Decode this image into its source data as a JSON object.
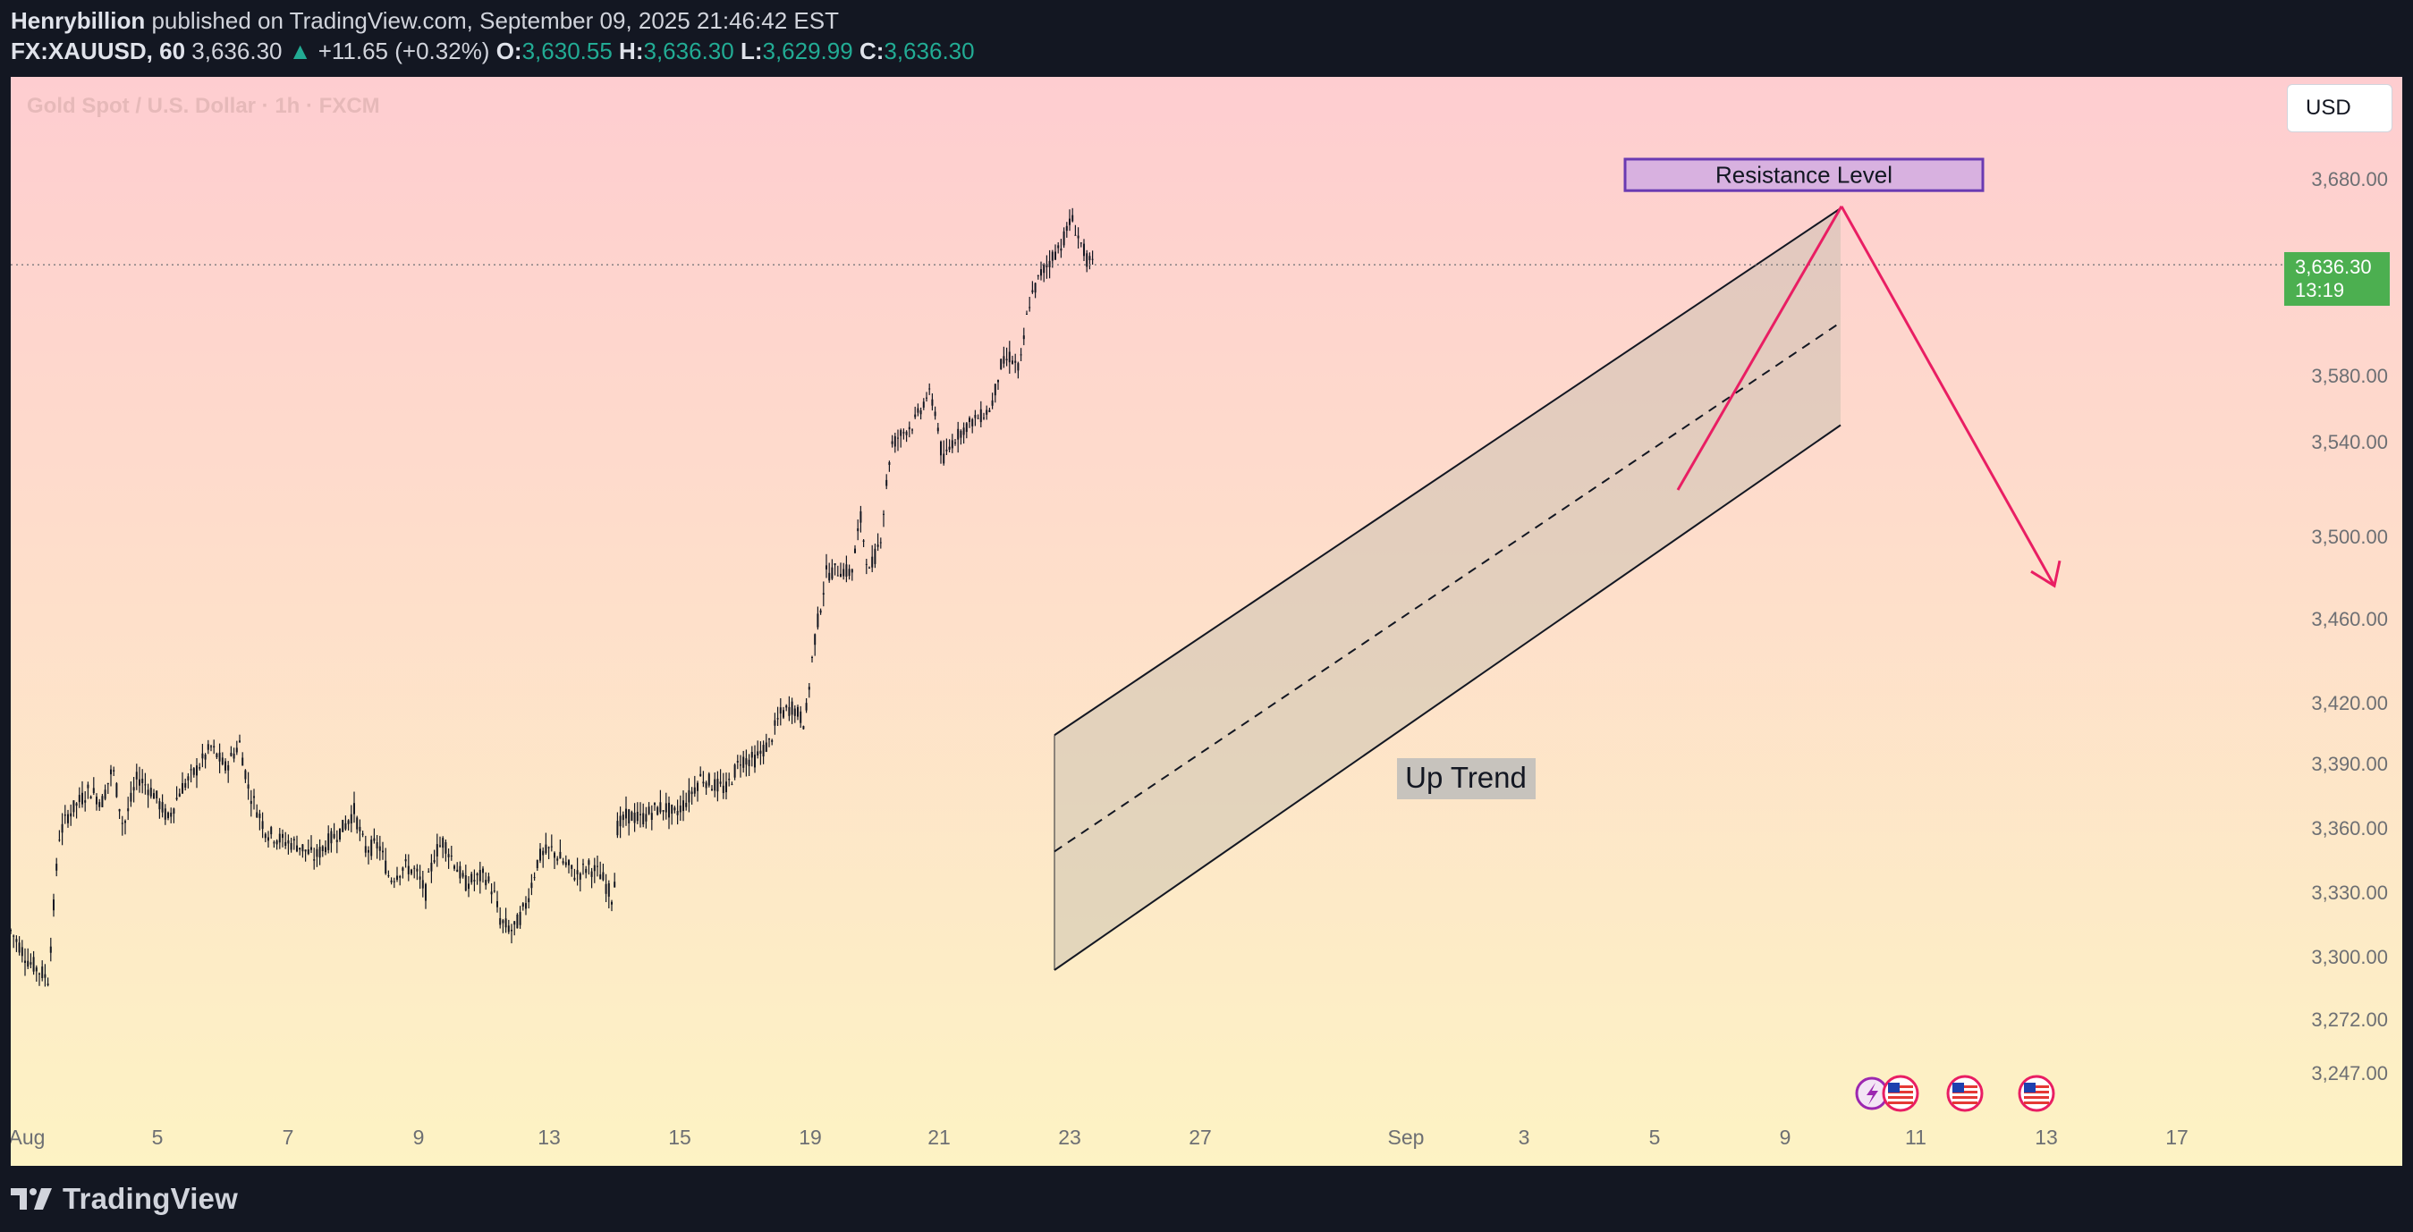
{
  "header": {
    "author": "Henrybillion",
    "published_text": " published on TradingView.com, September 09, 2025 21:46:42 EST",
    "symbol": "FX:XAUUSD, 60",
    "last": "3,636.30",
    "change": "+11.65 (+0.32%)",
    "open_label": "O:",
    "open": "3,630.55",
    "high_label": "H:",
    "high": "3,636.30",
    "low_label": "L:",
    "low": "3,629.99",
    "close_label": "C:",
    "close": "3,636.30"
  },
  "chart": {
    "series_title": "Gold Spot / U.S. Dollar · 1h · FXCM",
    "currency_button": "USD",
    "price_badge": {
      "price": "3,636.30",
      "countdown": "13:19"
    },
    "annotations": {
      "resistance": "Resistance Level",
      "trend": "Up Trend"
    },
    "colors": {
      "bg_top": "#fecdd0",
      "bg_bottom": "#fdf3c4",
      "candle": "#131722",
      "arrow": "#e91e63",
      "resistance_fill": "#d8b1e0",
      "resistance_border": "#6a3ab2",
      "channel_fill": "#c3bcae",
      "badge": "#4caf50"
    }
  },
  "chart_data": {
    "type": "candlestick",
    "symbol": "XAUUSD",
    "timeframe": "1h",
    "x_labels": [
      "Aug",
      "5",
      "7",
      "9",
      "13",
      "15",
      "19",
      "21",
      "23",
      "27",
      "Sep",
      "3",
      "5",
      "9",
      "11",
      "13",
      "17"
    ],
    "y_ticks": [
      "3,680.00",
      "3,580.00",
      "3,540.00",
      "3,500.00",
      "3,460.00",
      "3,420.00",
      "3,390.00",
      "3,360.00",
      "3,330.00",
      "3,300.00",
      "3,272.00",
      "3,247.00"
    ],
    "last_price": 3636.3,
    "price_path": [
      [
        0,
        3312
      ],
      [
        20,
        3298
      ],
      [
        42,
        3290
      ],
      [
        54,
        3356
      ],
      [
        64,
        3366
      ],
      [
        88,
        3378
      ],
      [
        102,
        3372
      ],
      [
        114,
        3388
      ],
      [
        126,
        3360
      ],
      [
        142,
        3384
      ],
      [
        160,
        3376
      ],
      [
        176,
        3364
      ],
      [
        190,
        3378
      ],
      [
        206,
        3386
      ],
      [
        224,
        3398
      ],
      [
        240,
        3388
      ],
      [
        256,
        3400
      ],
      [
        266,
        3378
      ],
      [
        286,
        3358
      ],
      [
        304,
        3354
      ],
      [
        322,
        3352
      ],
      [
        340,
        3346
      ],
      [
        356,
        3354
      ],
      [
        372,
        3360
      ],
      [
        384,
        3368
      ],
      [
        396,
        3350
      ],
      [
        412,
        3352
      ],
      [
        424,
        3336
      ],
      [
        440,
        3342
      ],
      [
        452,
        3340
      ],
      [
        464,
        3330
      ],
      [
        474,
        3348
      ],
      [
        484,
        3354
      ],
      [
        496,
        3344
      ],
      [
        508,
        3334
      ],
      [
        520,
        3336
      ],
      [
        530,
        3338
      ],
      [
        540,
        3330
      ],
      [
        548,
        3316
      ],
      [
        562,
        3312
      ],
      [
        576,
        3324
      ],
      [
        590,
        3346
      ],
      [
        604,
        3350
      ],
      [
        618,
        3344
      ],
      [
        632,
        3338
      ],
      [
        646,
        3342
      ],
      [
        660,
        3338
      ],
      [
        674,
        3326
      ],
      [
        678,
        3360
      ],
      [
        690,
        3366
      ],
      [
        704,
        3364
      ],
      [
        718,
        3368
      ],
      [
        730,
        3370
      ],
      [
        742,
        3366
      ],
      [
        758,
        3374
      ],
      [
        772,
        3384
      ],
      [
        786,
        3380
      ],
      [
        800,
        3378
      ],
      [
        816,
        3392
      ],
      [
        832,
        3392
      ],
      [
        848,
        3400
      ],
      [
        860,
        3414
      ],
      [
        874,
        3418
      ],
      [
        888,
        3410
      ],
      [
        898,
        3448
      ],
      [
        912,
        3482
      ],
      [
        928,
        3484
      ],
      [
        940,
        3482
      ],
      [
        950,
        3508
      ],
      [
        960,
        3482
      ],
      [
        972,
        3498
      ],
      [
        984,
        3538
      ],
      [
        994,
        3544
      ],
      [
        1008,
        3550
      ],
      [
        1018,
        3560
      ],
      [
        1026,
        3570
      ],
      [
        1034,
        3558
      ],
      [
        1042,
        3530
      ],
      [
        1052,
        3540
      ],
      [
        1062,
        3546
      ],
      [
        1074,
        3552
      ],
      [
        1086,
        3556
      ],
      [
        1096,
        3560
      ],
      [
        1106,
        3584
      ],
      [
        1118,
        3590
      ],
      [
        1128,
        3582
      ],
      [
        1138,
        3616
      ],
      [
        1152,
        3632
      ],
      [
        1164,
        3640
      ],
      [
        1176,
        3648
      ],
      [
        1186,
        3660
      ],
      [
        1196,
        3648
      ],
      [
        1204,
        3638
      ],
      [
        1210,
        3636
      ]
    ],
    "channel": {
      "upper": [
        [
          "Aug 22",
          3404
        ],
        [
          "Sep 9",
          3665
        ]
      ],
      "lower": [
        [
          "Aug 22",
          3294
        ],
        [
          "Sep 9",
          3550
        ]
      ],
      "mid": [
        [
          "Aug 22",
          3349
        ],
        [
          "Sep 9",
          3607
        ]
      ]
    },
    "resistance_zone": {
      "low": 3674,
      "high": 3690,
      "label": "Resistance Level"
    },
    "projection": {
      "from": 3666,
      "to": 3476,
      "direction": "down"
    },
    "annotation_up_trend": "Up Trend",
    "grid": false
  }
}
